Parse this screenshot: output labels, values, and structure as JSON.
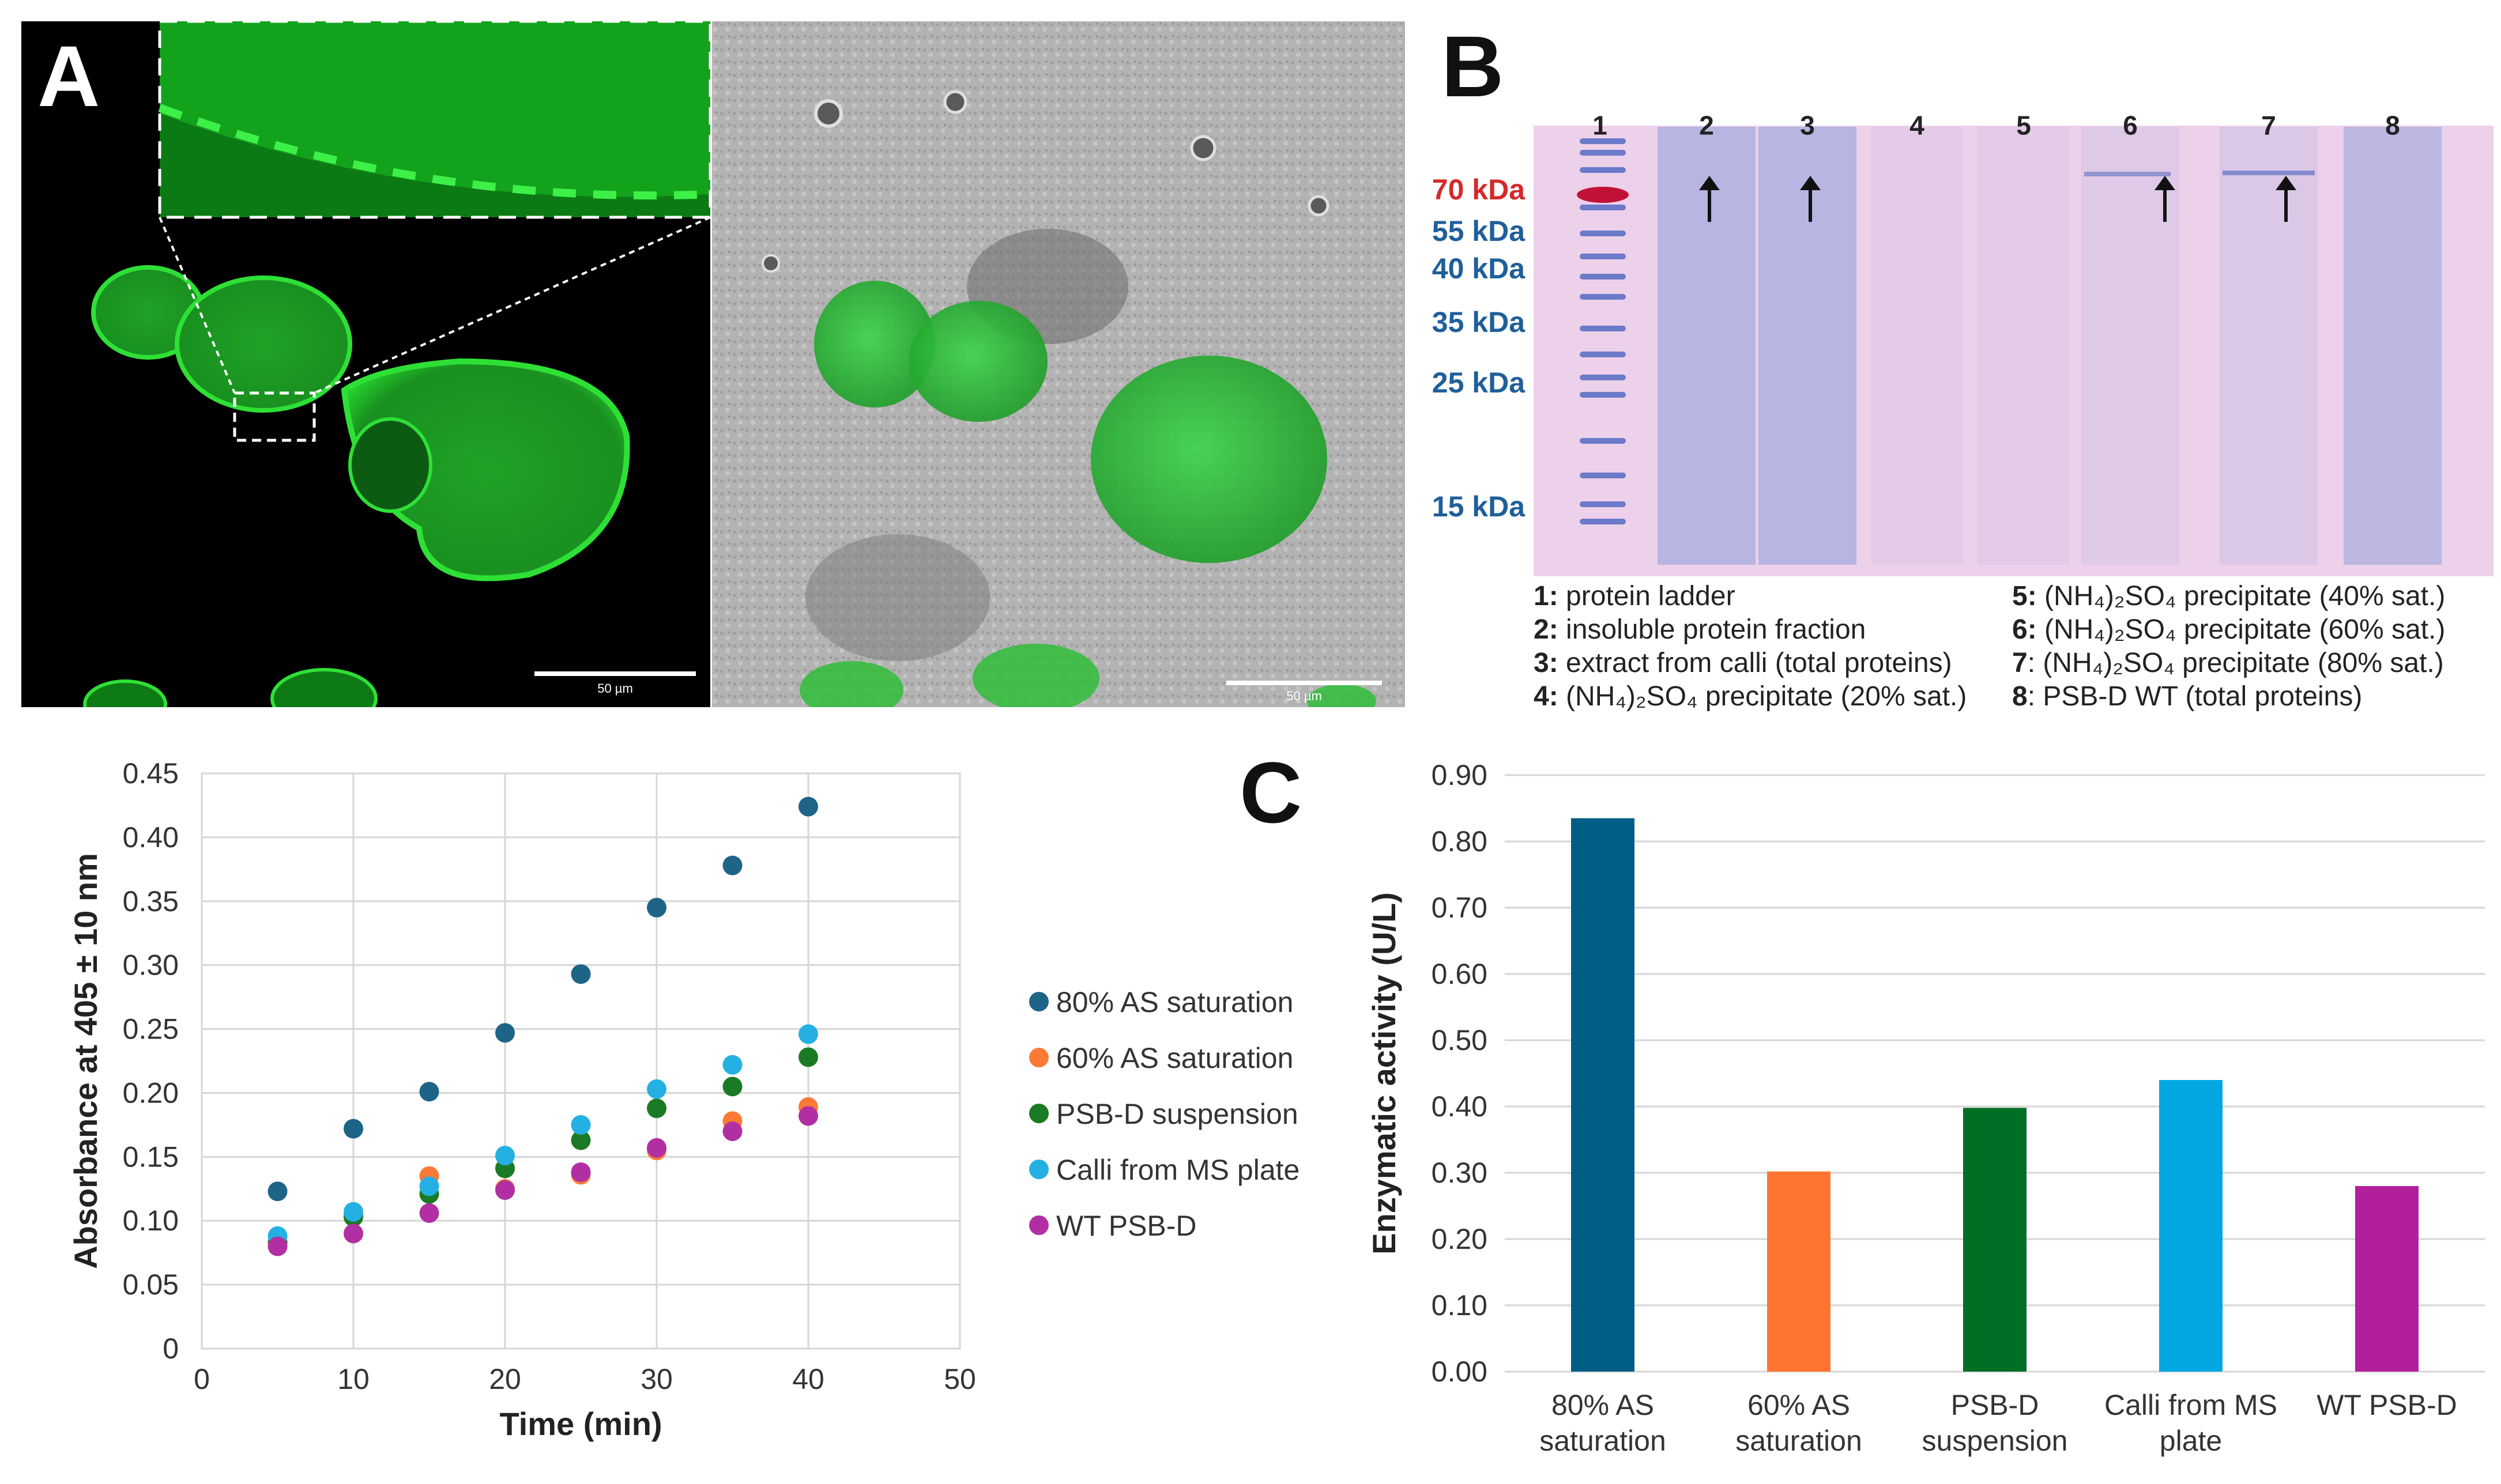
{
  "panels": {
    "a": "A",
    "b": "B",
    "c": "C"
  },
  "microscopy": {
    "scale_bar_left": "50 µm",
    "scale_bar_right": "50 µm",
    "colors": {
      "fluorescence": "#22d02a",
      "background": "#000000"
    }
  },
  "gel": {
    "lanes": [
      "1",
      "2",
      "3",
      "4",
      "5",
      "6",
      "7",
      "8"
    ],
    "markers": [
      {
        "label": "70 kDa",
        "color": "#d42a2a"
      },
      {
        "label": "55 kDa",
        "color": "#1f5f9a"
      },
      {
        "label": "40 kDa",
        "color": "#1f5f9a"
      },
      {
        "label": "35 kDa",
        "color": "#1f5f9a"
      },
      {
        "label": "25 kDa",
        "color": "#1f5f9a"
      },
      {
        "label": "15 kDa",
        "color": "#1f5f9a"
      }
    ],
    "arrow_lanes": [
      "2",
      "3",
      "6",
      "7"
    ],
    "legend": [
      {
        "num": "1:",
        "text": "protein ladder"
      },
      {
        "num": "2:",
        "text": "insoluble protein fraction"
      },
      {
        "num": "3:",
        "text": "extract from calli (total proteins)"
      },
      {
        "num": "4:",
        "text": "(NH₄)₂SO₄ precipitate (20% sat.)"
      },
      {
        "num": "5:",
        "text": "(NH₄)₂SO₄ precipitate (40% sat.)"
      },
      {
        "num": "6:",
        "text": "(NH₄)₂SO₄ precipitate (60% sat.)"
      },
      {
        "num": "7",
        "text": ": (NH₄)₂SO₄ precipitate (80% sat.)"
      },
      {
        "num": "8",
        "text": ": PSB-D WT (total proteins)"
      }
    ]
  },
  "chart_data": [
    {
      "type": "scatter",
      "title": "",
      "xlabel": "Time (min)",
      "ylabel": "Absorbance at 405 ± 10 nm",
      "xlim": [
        0,
        50
      ],
      "ylim": [
        0,
        0.45
      ],
      "xticks": [
        "0",
        "10",
        "20",
        "30",
        "40",
        "50"
      ],
      "yticks": [
        "0",
        "0.05",
        "0.10",
        "0.15",
        "0.20",
        "0.25",
        "0.30",
        "0.35",
        "0.40",
        "0.45"
      ],
      "grid": true,
      "legend_position": "right",
      "x": [
        5,
        10,
        15,
        20,
        25,
        30,
        35,
        40
      ],
      "series": [
        {
          "name": "80% AS saturation",
          "color": "#1d6487",
          "values": [
            0.123,
            0.172,
            0.201,
            0.247,
            0.293,
            0.345,
            0.378,
            0.424
          ]
        },
        {
          "name": "60% AS saturation",
          "color": "#fb7a35",
          "values": [
            0.083,
            0.105,
            0.135,
            0.125,
            0.136,
            0.155,
            0.178,
            0.189
          ]
        },
        {
          "name": "PSB-D suspension",
          "color": "#1b7a26",
          "values": [
            0.083,
            0.103,
            0.121,
            0.141,
            0.163,
            0.188,
            0.205,
            0.228
          ]
        },
        {
          "name": "Calli from MS plate",
          "color": "#24b0e3",
          "values": [
            0.088,
            0.107,
            0.127,
            0.151,
            0.175,
            0.203,
            0.222,
            0.246
          ]
        },
        {
          "name": "WT PSB-D",
          "color": "#b12fa2",
          "values": [
            0.08,
            0.09,
            0.106,
            0.124,
            0.138,
            0.157,
            0.17,
            0.182
          ]
        }
      ]
    },
    {
      "type": "bar",
      "title": "",
      "xlabel": "",
      "ylabel": "Enzymatic activity (U/L)",
      "ylim": [
        0,
        0.9
      ],
      "yticks": [
        "0.00",
        "0.10",
        "0.20",
        "0.30",
        "0.40",
        "0.50",
        "0.60",
        "0.70",
        "0.80",
        "0.90"
      ],
      "grid": true,
      "categories": [
        [
          "80% AS",
          "saturation"
        ],
        [
          "60% AS",
          "saturation"
        ],
        [
          "PSB-D",
          "suspension"
        ],
        [
          "Calli from MS",
          "plate"
        ],
        [
          "WT PSB-D"
        ]
      ],
      "values": [
        0.835,
        0.302,
        0.398,
        0.44,
        0.28
      ],
      "colors": [
        "#005d86",
        "#ff7530",
        "#006e24",
        "#00a7e3",
        "#b11f9c"
      ]
    }
  ]
}
